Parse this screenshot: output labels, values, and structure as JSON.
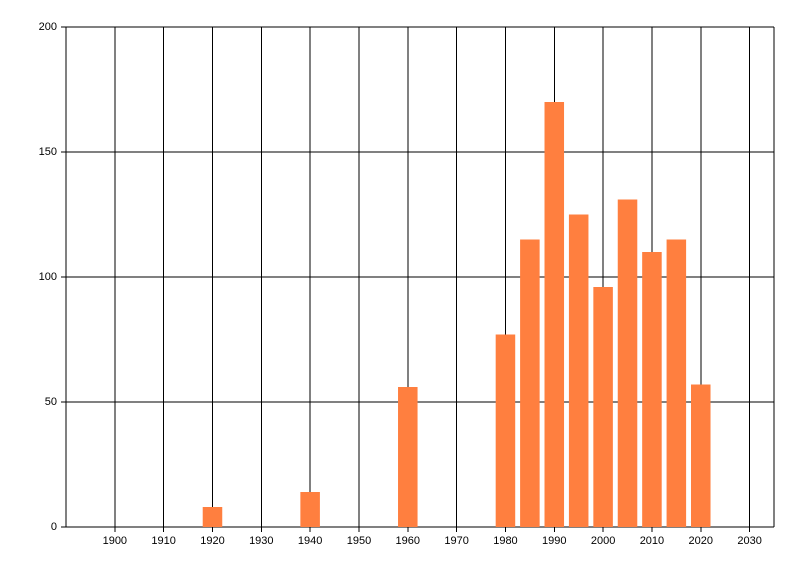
{
  "chart_data": {
    "type": "bar",
    "x": [
      1920,
      1940,
      1960,
      1980,
      1985,
      1990,
      1995,
      2000,
      2005,
      2010,
      2015,
      2020
    ],
    "values": [
      8,
      14,
      56,
      77,
      115,
      170,
      125,
      96,
      131,
      110,
      115,
      57
    ],
    "color": "#ff7f3f",
    "xlim": [
      1890,
      2035
    ],
    "xticks": [
      1900,
      1910,
      1920,
      1930,
      1940,
      1950,
      1960,
      1970,
      1980,
      1990,
      2000,
      2010,
      2020,
      2030
    ],
    "ylim": [
      0,
      200
    ],
    "yticks": [
      0,
      50,
      100,
      150,
      200
    ],
    "grid": true
  }
}
